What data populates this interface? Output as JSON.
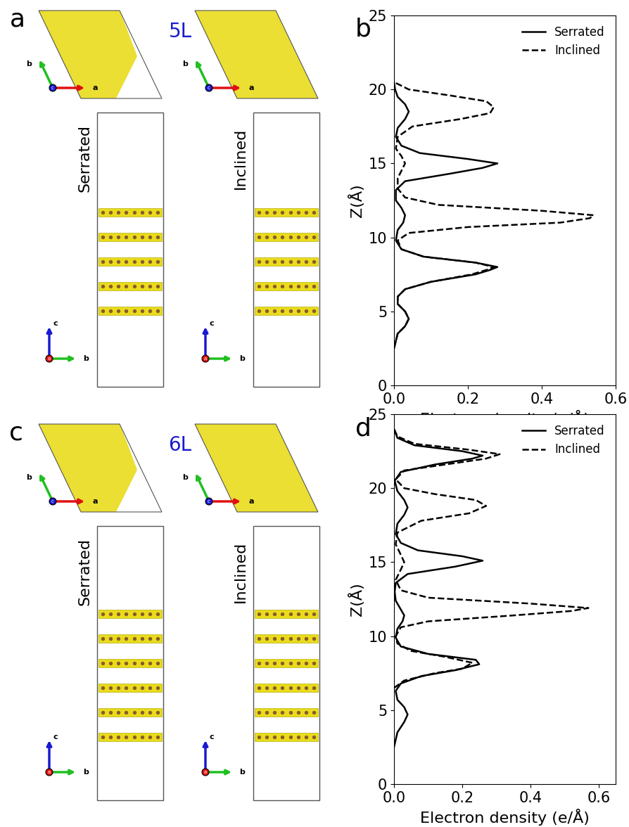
{
  "chart_data": [
    {
      "type": "line",
      "panel_label": "b",
      "xlabel": "Electron density (e/Å)",
      "ylabel": "Z(Å)",
      "xlim": [
        0.0,
        0.6
      ],
      "xticks": [
        0.0,
        0.2,
        0.4,
        0.6
      ],
      "ylim": [
        0,
        25
      ],
      "yticks": [
        0,
        5,
        10,
        15,
        20,
        25
      ],
      "grid": false,
      "legend": "upper right",
      "series": [
        {
          "name": "Serrated",
          "color": "#000000",
          "line_style": "solid",
          "y": [
            2.5,
            3.5,
            4.0,
            4.5,
            5.0,
            5.5,
            6.0,
            6.5,
            7.0,
            7.5,
            7.8,
            8.0,
            8.3,
            8.7,
            9.2,
            9.8,
            10.5,
            11.0,
            11.5,
            12.0,
            12.5,
            13.2,
            13.8,
            14.3,
            14.7,
            15.0,
            15.3,
            15.7,
            16.2,
            16.8,
            17.4,
            18.0,
            18.5,
            19.0,
            19.5,
            20.0,
            20.5
          ],
          "values": [
            0.0,
            0.01,
            0.03,
            0.04,
            0.03,
            0.01,
            0.01,
            0.03,
            0.1,
            0.22,
            0.26,
            0.28,
            0.22,
            0.08,
            0.02,
            0.005,
            0.01,
            0.025,
            0.03,
            0.02,
            0.005,
            0.005,
            0.03,
            0.15,
            0.24,
            0.28,
            0.2,
            0.07,
            0.02,
            0.005,
            0.01,
            0.03,
            0.04,
            0.03,
            0.01,
            0.003,
            0.0
          ]
        },
        {
          "name": "Inclined",
          "color": "#000000",
          "line_style": "dashed",
          "y": [
            2.5,
            3.5,
            4.0,
            4.5,
            5.0,
            5.5,
            6.0,
            6.5,
            7.0,
            7.5,
            7.8,
            8.0,
            8.3,
            8.7,
            9.2,
            9.8,
            10.3,
            10.7,
            11.0,
            11.3,
            11.5,
            11.8,
            12.2,
            12.7,
            13.3,
            14.0,
            14.5,
            15.0,
            15.5,
            16.0,
            16.8,
            17.5,
            18.0,
            18.4,
            18.8,
            19.2,
            19.6,
            20.0,
            20.5
          ],
          "values": [
            0.0,
            0.01,
            0.03,
            0.04,
            0.03,
            0.01,
            0.01,
            0.03,
            0.1,
            0.21,
            0.25,
            0.27,
            0.22,
            0.08,
            0.02,
            0.01,
            0.04,
            0.2,
            0.45,
            0.53,
            0.54,
            0.4,
            0.12,
            0.03,
            0.01,
            0.01,
            0.02,
            0.03,
            0.02,
            0.005,
            0.01,
            0.05,
            0.18,
            0.26,
            0.27,
            0.25,
            0.15,
            0.04,
            0.0
          ]
        }
      ]
    },
    {
      "type": "line",
      "panel_label": "d",
      "xlabel": "Electron density (e/Å)",
      "ylabel": "Z(Å)",
      "xlim": [
        0.0,
        0.65
      ],
      "xticks": [
        0.0,
        0.2,
        0.4,
        0.6
      ],
      "ylim": [
        0,
        25
      ],
      "yticks": [
        0,
        5,
        10,
        15,
        20,
        25
      ],
      "grid": false,
      "legend": "upper right",
      "series": [
        {
          "name": "Serrated",
          "color": "#000000",
          "line_style": "solid",
          "y": [
            2.5,
            3.5,
            4.2,
            4.7,
            5.2,
            5.7,
            6.3,
            6.8,
            7.3,
            7.7,
            8.1,
            8.4,
            8.8,
            9.3,
            9.9,
            10.5,
            11.0,
            11.4,
            11.8,
            12.4,
            13.0,
            13.6,
            14.2,
            14.7,
            15.1,
            15.4,
            15.8,
            16.3,
            16.9,
            17.6,
            18.2,
            18.7,
            19.2,
            19.8,
            20.5,
            21.1,
            21.6,
            22.0,
            22.2,
            22.5,
            22.9,
            23.4,
            24.0
          ],
          "values": [
            0.0,
            0.01,
            0.03,
            0.04,
            0.03,
            0.01,
            0.005,
            0.02,
            0.08,
            0.18,
            0.25,
            0.24,
            0.1,
            0.02,
            0.005,
            0.01,
            0.025,
            0.03,
            0.02,
            0.005,
            0.002,
            0.005,
            0.04,
            0.18,
            0.26,
            0.2,
            0.07,
            0.02,
            0.005,
            0.01,
            0.03,
            0.04,
            0.03,
            0.01,
            0.002,
            0.02,
            0.12,
            0.23,
            0.26,
            0.2,
            0.06,
            0.01,
            0.0
          ]
        },
        {
          "name": "Inclined",
          "color": "#000000",
          "line_style": "dashed",
          "y": [
            6.5,
            7.0,
            7.5,
            7.8,
            8.2,
            8.6,
            9.0,
            9.5,
            10.0,
            10.6,
            11.0,
            11.4,
            11.7,
            11.9,
            12.2,
            12.6,
            13.1,
            13.8,
            14.5,
            15.0,
            15.5,
            16.2,
            17.0,
            17.8,
            18.3,
            18.8,
            19.2,
            19.6,
            20.0,
            20.6,
            21.2,
            21.6,
            22.0,
            22.3,
            22.6,
            23.0,
            23.5,
            24.0
          ],
          "values": [
            0.0,
            0.03,
            0.12,
            0.2,
            0.23,
            0.15,
            0.05,
            0.01,
            0.005,
            0.02,
            0.1,
            0.35,
            0.52,
            0.57,
            0.4,
            0.1,
            0.02,
            0.005,
            0.02,
            0.03,
            0.02,
            0.005,
            0.01,
            0.08,
            0.22,
            0.27,
            0.24,
            0.12,
            0.03,
            0.005,
            0.03,
            0.15,
            0.27,
            0.31,
            0.22,
            0.06,
            0.01,
            0.0
          ]
        }
      ]
    }
  ],
  "structures": [
    {
      "panel_label": "a",
      "label": "5L",
      "layers": 5,
      "models": [
        "Serrated",
        "Inclined"
      ],
      "crystal_axes": [
        "a",
        "b",
        "c"
      ]
    },
    {
      "panel_label": "c",
      "label": "6L",
      "layers": 6,
      "models": [
        "Serrated",
        "Inclined"
      ],
      "crystal_axes": [
        "a",
        "b",
        "c"
      ]
    }
  ]
}
